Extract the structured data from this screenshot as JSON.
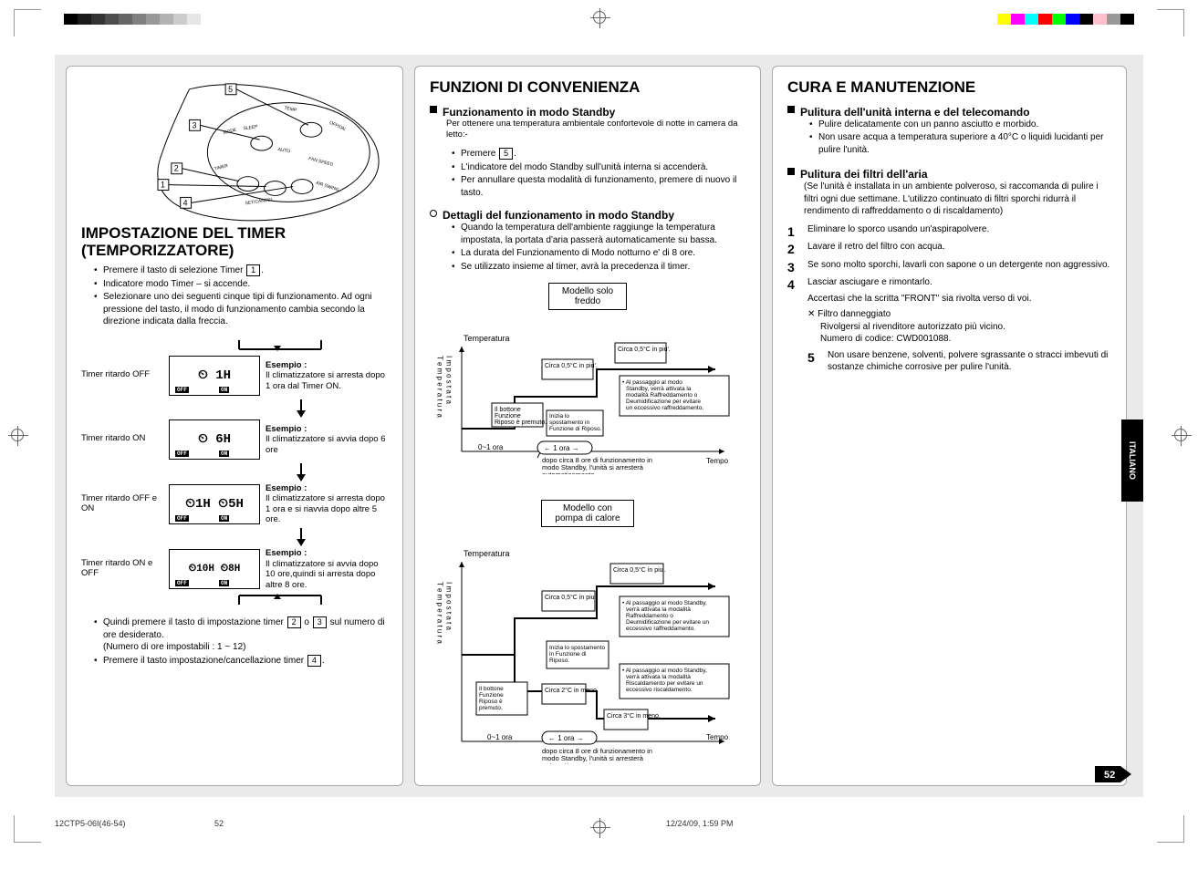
{
  "print": {
    "colorbar_left": [
      "#000000",
      "#1a1a1a",
      "#333333",
      "#4d4d4d",
      "#666666",
      "#808080",
      "#999999",
      "#b3b3b3",
      "#cccccc",
      "#e6e6e6"
    ],
    "colorbar_right": [
      "#ffff00",
      "#ff00ff",
      "#00ffff",
      "#ff0000",
      "#00ff00",
      "#0000ff",
      "#000000",
      "#ffc0cb",
      "#999999",
      "#000000"
    ],
    "footer_left": "12CTP5-06I(46-54)",
    "footer_center": "52",
    "footer_right": "12/24/09, 1:59 PM",
    "side_tab": "ITALIANO",
    "page_number": "52"
  },
  "col1": {
    "title": "IMPOSTAZIONE DEL TIMER (TEMPORIZZATORE)",
    "remote_callouts": [
      "5",
      "3",
      "2",
      "1",
      "4"
    ],
    "intro": [
      "Premere il tasto di selezione Timer [1].",
      "Indicatore modo Timer – si accende.",
      "Selezionare uno dei seguenti cinque tipi di funzionamento. Ad ogni pressione del tasto, il modo di funzionamento cambia secondo la direzione indicata dalla freccia."
    ],
    "timer_rows": [
      {
        "label": "Timer ritardo OFF",
        "lcd": "⏲ 1H",
        "ex_title": "Esempio :",
        "ex": "Il climatizzatore si arresta dopo 1 ora dal Timer ON."
      },
      {
        "label": "Timer ritardo ON",
        "lcd": "⏲ 6H",
        "ex_title": "Esempio :",
        "ex": "Il climatizzatore si avvia dopo 6 ore"
      },
      {
        "label": "Timer ritardo OFF e ON",
        "lcd": "⏲1H ⏲5H",
        "ex_title": "Esempio :",
        "ex": "Il climatizzatore si arresta dopo 1 ora e si riavvia dopo altre 5 ore."
      },
      {
        "label": "Timer ritardo ON e OFF",
        "lcd": "⏲10H ⏲8H",
        "ex_title": "Esempio :",
        "ex": "Il climatizzatore si avvia dopo 10 ore,quindi si arresta dopo altre 8 ore."
      }
    ],
    "outro": [
      "Quindi premere il tasto di impostazione timer [2] o [3] sul numero di ore desiderato.\n(Numero di ore impostabili : 1 ~ 12)",
      "Premere il tasto impostazione/cancellazione timer [4]."
    ]
  },
  "col2": {
    "title": "FUNZIONI DI CONVENIENZA",
    "s1_title": "Funzionamento in modo Standby",
    "s1_intro": "Per ottenere una temperatura ambientale confortevole di notte in camera da letto:-",
    "s1_items": [
      "Premere [5].",
      "L'indicatore del modo Standby sull'unità interna si accenderà.",
      "Per annullare questa modalità di funzionamento, premere di nuovo il tasto."
    ],
    "s2_title": "Dettagli del funzionamento in modo Standby",
    "s2_items": [
      "Quando la temperatura dell'ambiente raggiunge la temperatura impostata, la portata d'aria passerà automaticamente su bassa.",
      "La durata del Funzionamento di Modo notturno e' di 8 ore.",
      "Se utilizzato insieme al timer, avrà la precedenza il timer."
    ],
    "graph1": {
      "title": "Modello solo freddo",
      "ylabel": "Temperatura",
      "yside": "Temperatura Impostata",
      "xlabel": "Tempo",
      "x_range": "0~1 ora",
      "x_tick": "← 1 ora →",
      "step1": "Circa 0,5°C in piu'.",
      "step2": "Circa 0,5°C in piu'.",
      "box_left": "Il bottone Funzione Riposo è premuto.",
      "box_mid": "Inizia lo spostamento in Funzione di Riposo.",
      "box_right": "Al passaggio al modo Standby, verrà attivata la modalità Raffreddamento o Deumidificazione per evitare un eccessivo raffreddamento.",
      "note": "dopo circa 8 ore di funzionamento in modo Standby, l'unità si arresterà automaticamente."
    },
    "graph2": {
      "title": "Modello con pompa di calore",
      "ylabel": "Temperatura",
      "yside": "Temperatura Impostata",
      "xlabel": "Tempo",
      "x_range": "0~1 ora",
      "x_tick": "← 1 ora →",
      "up1": "Circa 0,5°C in piu'.",
      "up2": "Circa 0,5°C in piu'.",
      "dn1": "Circa 2°C in meno.",
      "dn2": "Circa 3°C in meno.",
      "box_left": "Il bottone Funzione Riposo è premuto.",
      "box_mid": "Inizia lo spostamento in Funzione di Riposo.",
      "box_up": "Al passaggio al modo Standby, verrà attivata la modalità Raffreddamento o Deumidificazione per evitare un eccessivo raffreddamento.",
      "box_dn": "Al passaggio al modo Standby, verrà attivata la modalità Riscaldamento per evitare un eccessivo riscaldamento.",
      "note": "dopo circa 8 ore di funzionamento in modo Standby, l'unità si arresterà automaticamente."
    }
  },
  "col3": {
    "title": "CURA E MANUTENZIONE",
    "s1_title": "Pulitura dell'unità interna e del telecomando",
    "s1_items": [
      "Pulire delicatamente con un panno asciutto e morbido.",
      "Non usare acqua a temperatura superiore a 40°C o liquidi lucidanti per pulire l'unità."
    ],
    "s2_title": "Pulitura dei filtri dell'aria",
    "s2_intro": "(Se l'unità è installata in un ambiente polveroso, si raccomanda di pulire i filtri ogni due settimane. L'utilizzo continuato di filtri sporchi ridurrà il rendimento di raffreddamento o di riscaldamento)",
    "steps": [
      "Eliminare lo sporco usando un'aspirapolvere.",
      "Lavare il retro del filtro con acqua.",
      "Se sono molto sporchi, lavarli con sapone o un detergente non aggressivo.",
      "Lasciar asciugare e rimontarlo."
    ],
    "front_note": "Accertasi che la scritta \"FRONT\" sia rivolta verso di voi.",
    "damaged_title": "✕ Filtro danneggiato",
    "damaged_lines": [
      "Rivolgersi al rivenditore autorizzato più vicino.",
      "Numero di codice: CWD001088."
    ],
    "nouse": "Non usare benzene, solventi, polvere sgrassante o stracci imbevuti di sostanze chimiche corrosive per pulire l'unità."
  }
}
